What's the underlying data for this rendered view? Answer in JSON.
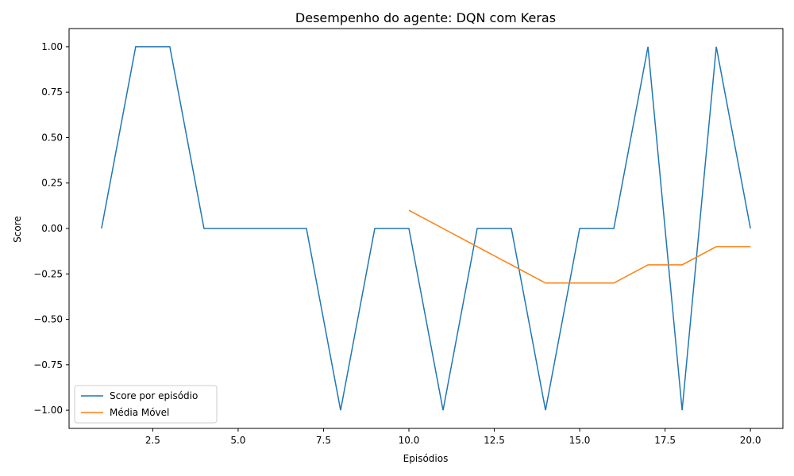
{
  "chart_data": {
    "type": "line",
    "title": "Desempenho do agente: DQN com Keras",
    "xlabel": "Episódios",
    "ylabel": "Score",
    "xlim": [
      0.05,
      20.95
    ],
    "ylim": [
      -1.1,
      1.1
    ],
    "xticks": [
      2.5,
      5.0,
      7.5,
      10.0,
      12.5,
      15.0,
      17.5,
      20.0
    ],
    "xtick_labels": [
      "2.5",
      "5.0",
      "7.5",
      "10.0",
      "12.5",
      "15.0",
      "17.5",
      "20.0"
    ],
    "yticks": [
      1.0,
      0.75,
      0.5,
      0.25,
      0.0,
      -0.25,
      -0.5,
      -0.75,
      -1.0
    ],
    "ytick_labels": [
      "1.00",
      "0.75",
      "0.50",
      "0.25",
      "0.00",
      "−0.25",
      "−0.50",
      "−0.75",
      "−1.00"
    ],
    "grid": false,
    "legend_position": "lower-left",
    "series": [
      {
        "name": "Score por episódio",
        "color": "#1f77b4",
        "x": [
          1,
          2,
          3,
          4,
          5,
          6,
          7,
          8,
          9,
          10,
          11,
          12,
          13,
          14,
          15,
          16,
          17,
          18,
          19,
          20
        ],
        "y": [
          0,
          1,
          1,
          0,
          0,
          0,
          0,
          -1,
          0,
          0,
          -1,
          0,
          0,
          -1,
          0,
          0,
          1,
          -1,
          1,
          0
        ]
      },
      {
        "name": "Média Móvel",
        "color": "#ff7f0e",
        "x": [
          10,
          11,
          12,
          13,
          14,
          15,
          16,
          17,
          18,
          19,
          20
        ],
        "y": [
          0.1,
          0.0,
          -0.1,
          -0.2,
          -0.3,
          -0.3,
          -0.3,
          -0.2,
          -0.2,
          -0.1,
          -0.1
        ]
      }
    ]
  }
}
